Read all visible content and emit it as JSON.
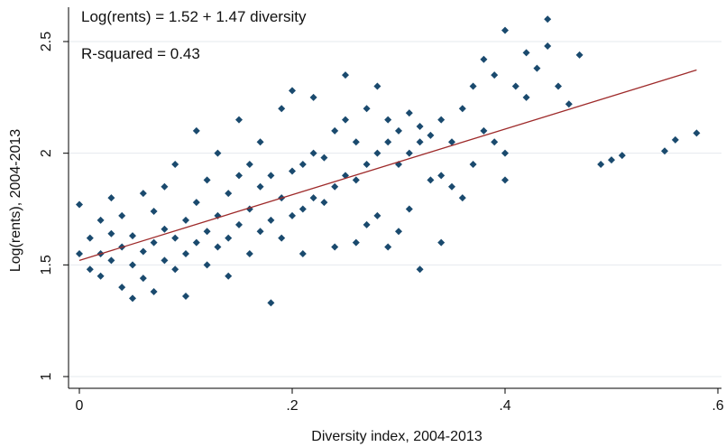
{
  "chart_data": {
    "type": "scatter",
    "title": "",
    "xlabel": "Diversity index, 2004-2013",
    "ylabel": "Log(rents), 2004-2013",
    "xlim": [
      0,
      0.6
    ],
    "ylim": [
      1,
      2.5
    ],
    "x_ticks": [
      {
        "value": 0,
        "label": "0"
      },
      {
        "value": 0.2,
        "label": ".2"
      },
      {
        "value": 0.4,
        "label": ".4"
      },
      {
        "value": 0.6,
        "label": ".6"
      }
    ],
    "y_ticks": [
      {
        "value": 1,
        "label": "1"
      },
      {
        "value": 1.5,
        "label": "1.5"
      },
      {
        "value": 2,
        "label": "2"
      },
      {
        "value": 2.5,
        "label": "2.5"
      }
    ],
    "grid": "horizontal",
    "annotations": [
      "Log(rents) = 1.52 + 1.47 diversity",
      "R-squared  = 0.43"
    ],
    "fit_line": {
      "intercept": 1.52,
      "slope": 1.47,
      "x_range": [
        0,
        0.58
      ]
    },
    "colors": {
      "points": "#1a4a6e",
      "fit_line": "#9e2a2a",
      "grid": "#e6eaee"
    },
    "series": [
      {
        "points": [
          [
            0.0,
            1.55
          ],
          [
            0.0,
            1.77
          ],
          [
            0.01,
            1.48
          ],
          [
            0.01,
            1.62
          ],
          [
            0.02,
            1.55
          ],
          [
            0.02,
            1.7
          ],
          [
            0.02,
            1.45
          ],
          [
            0.03,
            1.52
          ],
          [
            0.03,
            1.64
          ],
          [
            0.03,
            1.8
          ],
          [
            0.04,
            1.4
          ],
          [
            0.04,
            1.58
          ],
          [
            0.04,
            1.72
          ],
          [
            0.05,
            1.5
          ],
          [
            0.05,
            1.63
          ],
          [
            0.05,
            1.35
          ],
          [
            0.06,
            1.56
          ],
          [
            0.06,
            1.82
          ],
          [
            0.06,
            1.44
          ],
          [
            0.07,
            1.6
          ],
          [
            0.07,
            1.74
          ],
          [
            0.07,
            1.38
          ],
          [
            0.08,
            1.52
          ],
          [
            0.08,
            1.66
          ],
          [
            0.08,
            1.85
          ],
          [
            0.09,
            1.48
          ],
          [
            0.09,
            1.62
          ],
          [
            0.09,
            1.95
          ],
          [
            0.1,
            1.55
          ],
          [
            0.1,
            1.7
          ],
          [
            0.1,
            1.36
          ],
          [
            0.11,
            1.6
          ],
          [
            0.11,
            1.78
          ],
          [
            0.11,
            2.1
          ],
          [
            0.12,
            1.5
          ],
          [
            0.12,
            1.65
          ],
          [
            0.12,
            1.88
          ],
          [
            0.13,
            1.58
          ],
          [
            0.13,
            1.72
          ],
          [
            0.13,
            2.0
          ],
          [
            0.14,
            1.62
          ],
          [
            0.14,
            1.82
          ],
          [
            0.14,
            1.45
          ],
          [
            0.15,
            1.68
          ],
          [
            0.15,
            1.9
          ],
          [
            0.15,
            2.15
          ],
          [
            0.16,
            1.55
          ],
          [
            0.16,
            1.75
          ],
          [
            0.16,
            1.95
          ],
          [
            0.17,
            1.65
          ],
          [
            0.17,
            1.85
          ],
          [
            0.17,
            2.05
          ],
          [
            0.18,
            1.7
          ],
          [
            0.18,
            1.9
          ],
          [
            0.18,
            1.33
          ],
          [
            0.19,
            1.62
          ],
          [
            0.19,
            1.8
          ],
          [
            0.19,
            2.2
          ],
          [
            0.2,
            1.72
          ],
          [
            0.2,
            1.92
          ],
          [
            0.2,
            2.28
          ],
          [
            0.21,
            1.75
          ],
          [
            0.21,
            1.95
          ],
          [
            0.21,
            1.55
          ],
          [
            0.22,
            1.8
          ],
          [
            0.22,
            2.0
          ],
          [
            0.22,
            2.25
          ],
          [
            0.23,
            1.78
          ],
          [
            0.23,
            1.98
          ],
          [
            0.24,
            1.85
          ],
          [
            0.24,
            2.1
          ],
          [
            0.24,
            1.58
          ],
          [
            0.25,
            1.9
          ],
          [
            0.25,
            2.15
          ],
          [
            0.25,
            2.35
          ],
          [
            0.26,
            1.88
          ],
          [
            0.26,
            2.05
          ],
          [
            0.26,
            1.6
          ],
          [
            0.27,
            1.95
          ],
          [
            0.27,
            2.2
          ],
          [
            0.27,
            1.68
          ],
          [
            0.28,
            2.0
          ],
          [
            0.28,
            2.3
          ],
          [
            0.28,
            1.72
          ],
          [
            0.29,
            2.05
          ],
          [
            0.29,
            2.15
          ],
          [
            0.29,
            1.58
          ],
          [
            0.3,
            1.95
          ],
          [
            0.3,
            2.1
          ],
          [
            0.3,
            1.65
          ],
          [
            0.31,
            2.0
          ],
          [
            0.31,
            2.18
          ],
          [
            0.31,
            1.75
          ],
          [
            0.32,
            2.05
          ],
          [
            0.32,
            2.12
          ],
          [
            0.32,
            1.48
          ],
          [
            0.33,
            1.88
          ],
          [
            0.33,
            2.08
          ],
          [
            0.34,
            1.9
          ],
          [
            0.34,
            2.15
          ],
          [
            0.34,
            1.6
          ],
          [
            0.35,
            1.85
          ],
          [
            0.35,
            2.05
          ],
          [
            0.36,
            1.8
          ],
          [
            0.36,
            2.2
          ],
          [
            0.37,
            1.95
          ],
          [
            0.37,
            2.3
          ],
          [
            0.38,
            2.42
          ],
          [
            0.38,
            2.1
          ],
          [
            0.39,
            2.35
          ],
          [
            0.39,
            2.05
          ],
          [
            0.4,
            2.55
          ],
          [
            0.4,
            2.0
          ],
          [
            0.4,
            1.88
          ],
          [
            0.41,
            2.3
          ],
          [
            0.42,
            2.45
          ],
          [
            0.42,
            2.25
          ],
          [
            0.43,
            2.38
          ],
          [
            0.44,
            2.48
          ],
          [
            0.44,
            2.6
          ],
          [
            0.45,
            2.3
          ],
          [
            0.46,
            2.22
          ],
          [
            0.47,
            2.44
          ],
          [
            0.49,
            1.95
          ],
          [
            0.5,
            1.97
          ],
          [
            0.51,
            1.99
          ],
          [
            0.55,
            2.01
          ],
          [
            0.56,
            2.06
          ],
          [
            0.58,
            2.09
          ]
        ]
      }
    ]
  }
}
